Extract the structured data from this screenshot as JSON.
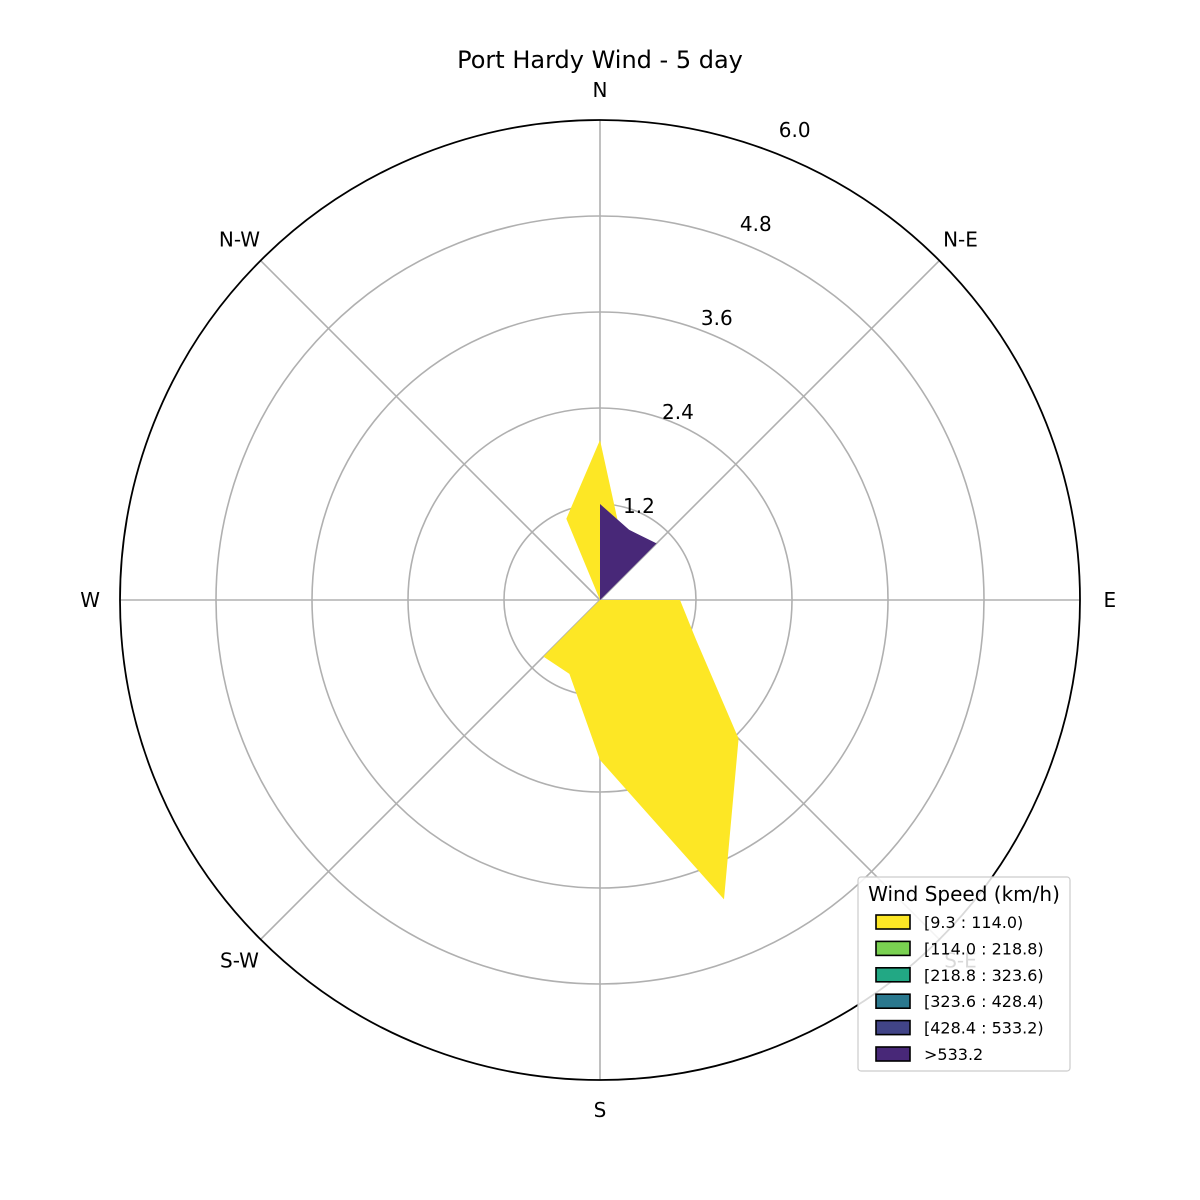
{
  "chart_data": {
    "type": "windrose",
    "title": "Port Hardy Wind - 5 day",
    "directions": [
      "E",
      "N-E",
      "N",
      "N-W",
      "W",
      "S-W",
      "S",
      "S-E"
    ],
    "radial_ticks": [
      "1.2",
      "2.4",
      "3.6",
      "4.8",
      "6.0"
    ],
    "radial_tick_values": [
      1.2,
      2.4,
      3.6,
      4.8,
      6.0
    ],
    "rmax": 6.0,
    "grid": true,
    "legend": {
      "title": "Wind Speed (km/h)",
      "placement": "lower-right",
      "entries": [
        {
          "label": "[9.3 : 114.0)",
          "color": "#fde725"
        },
        {
          "label": "[114.0 : 218.8)",
          "color": "#7ad151"
        },
        {
          "label": "[218.8 : 323.6)",
          "color": "#22a884"
        },
        {
          "label": "[323.6 : 428.4)",
          "color": "#2a788e"
        },
        {
          "label": "[428.4 : 533.2)",
          "color": "#414487"
        },
        {
          "label": ">533.2",
          "color": "#482878"
        }
      ]
    },
    "series": [
      {
        "name": "[9.3 : 114.0)",
        "color": "#fde725",
        "points": [
          {
            "bearing": 0,
            "r": 2.0
          },
          {
            "bearing": 22.5,
            "r": 0.75
          },
          {
            "bearing": 45,
            "r": 0.0
          },
          {
            "bearing": 67.5,
            "r": 0.0
          },
          {
            "bearing": 90,
            "r": 1.0
          },
          {
            "bearing": 112.5,
            "r": 1.3
          },
          {
            "bearing": 135,
            "r": 2.45
          },
          {
            "bearing": 157.5,
            "r": 4.05
          },
          {
            "bearing": 180,
            "r": 2.0
          },
          {
            "bearing": 202.5,
            "r": 1.0
          },
          {
            "bearing": 225,
            "r": 1.0
          },
          {
            "bearing": 247.5,
            "r": 0.0
          },
          {
            "bearing": 270,
            "r": 0.0
          },
          {
            "bearing": 292.5,
            "r": 0.0
          },
          {
            "bearing": 315,
            "r": 0.0
          },
          {
            "bearing": 337.5,
            "r": 1.1
          }
        ]
      },
      {
        "name": ">533.2",
        "color": "#482878",
        "points": [
          {
            "bearing": 0,
            "r": 1.2
          },
          {
            "bearing": 22.5,
            "r": 0.95
          },
          {
            "bearing": 45,
            "r": 1.0
          },
          {
            "bearing": 67.5,
            "r": 0.0
          },
          {
            "bearing": 90,
            "r": 0.0
          },
          {
            "bearing": 112.5,
            "r": 0.0
          },
          {
            "bearing": 135,
            "r": 0.0
          },
          {
            "bearing": 157.5,
            "r": 0.0
          },
          {
            "bearing": 180,
            "r": 0.0
          },
          {
            "bearing": 202.5,
            "r": 0.0
          },
          {
            "bearing": 225,
            "r": 0.0
          },
          {
            "bearing": 247.5,
            "r": 0.0
          },
          {
            "bearing": 270,
            "r": 0.0
          },
          {
            "bearing": 292.5,
            "r": 0.0
          },
          {
            "bearing": 315,
            "r": 0.0
          },
          {
            "bearing": 337.5,
            "r": 0.0
          }
        ]
      }
    ]
  }
}
